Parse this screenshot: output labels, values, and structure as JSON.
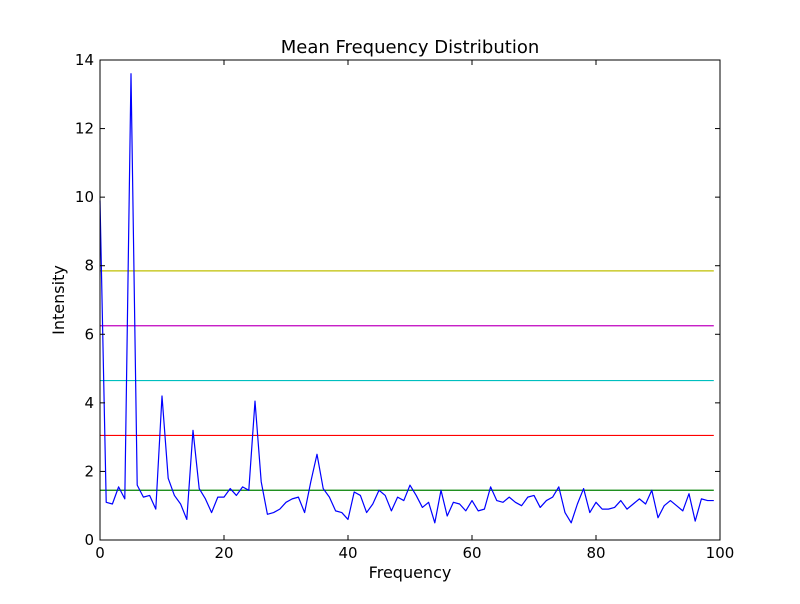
{
  "chart_data": {
    "type": "line",
    "title": "Mean Frequency Distribution",
    "xlabel": "Frequency",
    "ylabel": "Intensity",
    "xlim": [
      0,
      100
    ],
    "ylim": [
      0,
      14
    ],
    "grid": false,
    "xticks": [
      0,
      20,
      40,
      60,
      80,
      100
    ],
    "yticks": [
      0,
      2,
      4,
      6,
      8,
      10,
      12,
      14
    ],
    "series": [
      {
        "color": "#0000ff",
        "x": [
          0,
          1,
          2,
          3,
          4,
          5,
          6,
          7,
          8,
          9,
          10,
          11,
          12,
          13,
          14,
          15,
          16,
          17,
          18,
          19,
          20,
          21,
          22,
          23,
          24,
          25,
          26,
          27,
          28,
          29,
          30,
          31,
          32,
          33,
          34,
          35,
          36,
          37,
          38,
          39,
          40,
          41,
          42,
          43,
          44,
          45,
          46,
          47,
          48,
          49,
          50,
          51,
          52,
          53,
          54,
          55,
          56,
          57,
          58,
          59,
          60,
          61,
          62,
          63,
          64,
          65,
          66,
          67,
          68,
          69,
          70,
          71,
          72,
          73,
          74,
          75,
          76,
          77,
          78,
          79,
          80,
          81,
          82,
          83,
          84,
          85,
          86,
          87,
          88,
          89,
          90,
          91,
          92,
          93,
          94,
          95,
          96,
          97,
          98,
          99
        ],
        "values": [
          9.9,
          1.1,
          1.05,
          1.55,
          1.2,
          13.6,
          1.6,
          1.25,
          1.3,
          0.9,
          4.2,
          1.8,
          1.3,
          1.05,
          0.6,
          3.2,
          1.5,
          1.2,
          0.8,
          1.25,
          1.25,
          1.5,
          1.3,
          1.55,
          1.45,
          4.05,
          1.7,
          0.75,
          0.8,
          0.9,
          1.1,
          1.2,
          1.25,
          0.8,
          1.7,
          2.5,
          1.5,
          1.25,
          0.85,
          0.8,
          0.6,
          1.4,
          1.3,
          0.8,
          1.05,
          1.45,
          1.3,
          0.85,
          1.25,
          1.15,
          1.6,
          1.3,
          0.95,
          1.1,
          0.5,
          1.45,
          0.7,
          1.1,
          1.05,
          0.85,
          1.15,
          0.85,
          0.9,
          1.55,
          1.15,
          1.1,
          1.25,
          1.1,
          1.0,
          1.25,
          1.3,
          0.95,
          1.15,
          1.25,
          1.55,
          0.8,
          0.5,
          1.05,
          1.5,
          0.8,
          1.1,
          0.9,
          0.9,
          0.95,
          1.15,
          0.9,
          1.05,
          1.2,
          1.05,
          1.45,
          0.65,
          1.0,
          1.15,
          1.0,
          0.85,
          1.35,
          0.55,
          1.2,
          1.15,
          1.15
        ]
      }
    ],
    "hlines": [
      {
        "y": 1.45,
        "color": "#008000"
      },
      {
        "y": 3.05,
        "color": "#ff0000"
      },
      {
        "y": 4.65,
        "color": "#00bfbf"
      },
      {
        "y": 6.25,
        "color": "#bf00bf"
      },
      {
        "y": 7.85,
        "color": "#bfbf00"
      }
    ]
  }
}
